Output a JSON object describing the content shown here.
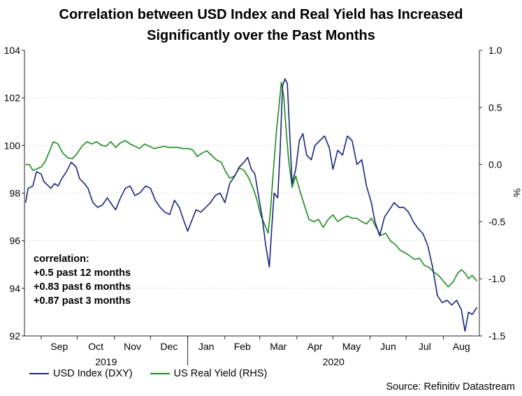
{
  "title": [
    "Correlation between USD Index and Real Yield has Increased",
    "Significantly over the Past Months"
  ],
  "annotation": [
    "correlation:",
    "+0.5 past 12 months",
    "+0.83 past 6 months",
    "+0.87 past 3 months"
  ],
  "source": "Source: Refinitiv Datastream",
  "colors": {
    "usd": "#1a237e",
    "real_yield": "#1b8a1b",
    "axis": "#222222",
    "grid": "#bdbdbd"
  },
  "chart_data": {
    "type": "line",
    "x_months": [
      "Sep",
      "Oct",
      "Nov",
      "Dec",
      "Jan",
      "Feb",
      "Mar",
      "Apr",
      "May",
      "Jun",
      "Jul",
      "Aug"
    ],
    "x_years": [
      "2019",
      "2020"
    ],
    "x_range": [
      "2019-08-18",
      "2020-08-31"
    ],
    "y_left": {
      "min": 92,
      "max": 104,
      "ticks": [
        "92",
        "94",
        "96",
        "98",
        "100",
        "102",
        "104"
      ]
    },
    "y_right": {
      "min": -1.5,
      "max": 1.0,
      "label": "%",
      "ticks": [
        "-1.5",
        "-1.0",
        "-0.5",
        "0.0",
        "0.5",
        "1.0"
      ]
    },
    "grid": "horizontal, dotted",
    "legend_position": "bottom-left",
    "series": [
      {
        "name": "USD Index (DXY)",
        "axis": "left",
        "points": [
          [
            "2019-08-19",
            97.6
          ],
          [
            "2019-08-21",
            98.2
          ],
          [
            "2019-08-25",
            98.3
          ],
          [
            "2019-08-28",
            98.9
          ],
          [
            "2019-09-01",
            98.8
          ],
          [
            "2019-09-03",
            98.5
          ],
          [
            "2019-09-05",
            98.4
          ],
          [
            "2019-09-09",
            98.2
          ],
          [
            "2019-09-12",
            98.4
          ],
          [
            "2019-09-15",
            98.3
          ],
          [
            "2019-09-18",
            98.6
          ],
          [
            "2019-09-22",
            98.9
          ],
          [
            "2019-09-26",
            99.3
          ],
          [
            "2019-09-30",
            99.1
          ],
          [
            "2019-10-03",
            98.6
          ],
          [
            "2019-10-07",
            98.4
          ],
          [
            "2019-10-10",
            98.2
          ],
          [
            "2019-10-14",
            97.6
          ],
          [
            "2019-10-18",
            97.4
          ],
          [
            "2019-10-22",
            97.5
          ],
          [
            "2019-10-26",
            97.8
          ],
          [
            "2019-10-30",
            97.5
          ],
          [
            "2019-11-02",
            97.3
          ],
          [
            "2019-11-06",
            97.8
          ],
          [
            "2019-11-10",
            98.2
          ],
          [
            "2019-11-14",
            98.3
          ],
          [
            "2019-11-18",
            97.9
          ],
          [
            "2019-11-22",
            98.0
          ],
          [
            "2019-11-27",
            98.3
          ],
          [
            "2019-12-01",
            98.2
          ],
          [
            "2019-12-05",
            97.7
          ],
          [
            "2019-12-09",
            97.4
          ],
          [
            "2019-12-13",
            97.2
          ],
          [
            "2019-12-17",
            97.1
          ],
          [
            "2019-12-21",
            97.7
          ],
          [
            "2019-12-25",
            97.4
          ],
          [
            "2019-12-29",
            96.8
          ],
          [
            "2020-01-01",
            96.4
          ],
          [
            "2020-01-04",
            96.8
          ],
          [
            "2020-01-08",
            97.3
          ],
          [
            "2020-01-12",
            97.2
          ],
          [
            "2020-01-16",
            97.4
          ],
          [
            "2020-01-20",
            97.6
          ],
          [
            "2020-01-24",
            97.9
          ],
          [
            "2020-01-28",
            98.0
          ],
          [
            "2020-02-01",
            97.6
          ],
          [
            "2020-02-05",
            98.4
          ],
          [
            "2020-02-09",
            98.7
          ],
          [
            "2020-02-13",
            99.1
          ],
          [
            "2020-02-17",
            99.3
          ],
          [
            "2020-02-20",
            99.5
          ],
          [
            "2020-02-23",
            99.0
          ],
          [
            "2020-02-26",
            98.8
          ],
          [
            "2020-02-29",
            97.9
          ],
          [
            "2020-03-03",
            97.0
          ],
          [
            "2020-03-06",
            95.8
          ],
          [
            "2020-03-09",
            94.9
          ],
          [
            "2020-03-11",
            96.5
          ],
          [
            "2020-03-13",
            98.0
          ],
          [
            "2020-03-16",
            97.8
          ],
          [
            "2020-03-18",
            99.8
          ],
          [
            "2020-03-20",
            102.5
          ],
          [
            "2020-03-22",
            102.8
          ],
          [
            "2020-03-24",
            102.6
          ],
          [
            "2020-03-26",
            100.5
          ],
          [
            "2020-03-28",
            98.4
          ],
          [
            "2020-03-31",
            99.0
          ],
          [
            "2020-04-03",
            100.2
          ],
          [
            "2020-04-06",
            100.5
          ],
          [
            "2020-04-09",
            99.6
          ],
          [
            "2020-04-13",
            99.4
          ],
          [
            "2020-04-16",
            100.0
          ],
          [
            "2020-04-20",
            100.2
          ],
          [
            "2020-04-24",
            100.4
          ],
          [
            "2020-04-28",
            99.9
          ],
          [
            "2020-05-01",
            99.0
          ],
          [
            "2020-05-05",
            99.8
          ],
          [
            "2020-05-09",
            99.6
          ],
          [
            "2020-05-13",
            100.4
          ],
          [
            "2020-05-17",
            100.2
          ],
          [
            "2020-05-21",
            99.2
          ],
          [
            "2020-05-25",
            99.4
          ],
          [
            "2020-05-29",
            98.3
          ],
          [
            "2020-06-02",
            97.6
          ],
          [
            "2020-06-05",
            96.8
          ],
          [
            "2020-06-09",
            96.2
          ],
          [
            "2020-06-13",
            97.0
          ],
          [
            "2020-06-17",
            97.3
          ],
          [
            "2020-06-21",
            97.6
          ],
          [
            "2020-06-25",
            97.4
          ],
          [
            "2020-06-29",
            97.4
          ],
          [
            "2020-07-03",
            97.2
          ],
          [
            "2020-07-07",
            96.8
          ],
          [
            "2020-07-11",
            96.5
          ],
          [
            "2020-07-15",
            96.3
          ],
          [
            "2020-07-19",
            95.8
          ],
          [
            "2020-07-23",
            94.9
          ],
          [
            "2020-07-27",
            93.7
          ],
          [
            "2020-07-31",
            93.4
          ],
          [
            "2020-08-04",
            93.5
          ],
          [
            "2020-08-08",
            93.3
          ],
          [
            "2020-08-12",
            93.5
          ],
          [
            "2020-08-16",
            93.1
          ],
          [
            "2020-08-19",
            92.2
          ],
          [
            "2020-08-22",
            93.0
          ],
          [
            "2020-08-25",
            92.9
          ],
          [
            "2020-08-29",
            93.2
          ]
        ]
      },
      {
        "name": "US Real Yield (RHS)",
        "axis": "right",
        "points": [
          [
            "2019-08-19",
            0.0
          ],
          [
            "2019-08-22",
            0.0
          ],
          [
            "2019-08-25",
            -0.05
          ],
          [
            "2019-08-28",
            -0.04
          ],
          [
            "2019-09-01",
            -0.02
          ],
          [
            "2019-09-04",
            0.02
          ],
          [
            "2019-09-08",
            0.12
          ],
          [
            "2019-09-11",
            0.2
          ],
          [
            "2019-09-15",
            0.18
          ],
          [
            "2019-09-19",
            0.1
          ],
          [
            "2019-09-23",
            0.06
          ],
          [
            "2019-09-27",
            0.05
          ],
          [
            "2019-10-01",
            0.1
          ],
          [
            "2019-10-05",
            0.16
          ],
          [
            "2019-10-09",
            0.2
          ],
          [
            "2019-10-13",
            0.18
          ],
          [
            "2019-10-17",
            0.2
          ],
          [
            "2019-10-21",
            0.17
          ],
          [
            "2019-10-25",
            0.16
          ],
          [
            "2019-10-29",
            0.2
          ],
          [
            "2019-11-02",
            0.15
          ],
          [
            "2019-11-06",
            0.19
          ],
          [
            "2019-11-10",
            0.21
          ],
          [
            "2019-11-14",
            0.18
          ],
          [
            "2019-11-18",
            0.16
          ],
          [
            "2019-11-22",
            0.14
          ],
          [
            "2019-11-26",
            0.18
          ],
          [
            "2019-11-30",
            0.16
          ],
          [
            "2019-12-04",
            0.14
          ],
          [
            "2019-12-08",
            0.15
          ],
          [
            "2019-12-12",
            0.16
          ],
          [
            "2019-12-16",
            0.15
          ],
          [
            "2019-12-20",
            0.15
          ],
          [
            "2019-12-24",
            0.15
          ],
          [
            "2019-12-28",
            0.14
          ],
          [
            "2020-01-01",
            0.14
          ],
          [
            "2020-01-05",
            0.13
          ],
          [
            "2020-01-09",
            0.07
          ],
          [
            "2020-01-13",
            0.1
          ],
          [
            "2020-01-17",
            0.12
          ],
          [
            "2020-01-21",
            0.08
          ],
          [
            "2020-01-25",
            0.04
          ],
          [
            "2020-01-29",
            0.02
          ],
          [
            "2020-02-01",
            -0.05
          ],
          [
            "2020-02-05",
            -0.12
          ],
          [
            "2020-02-09",
            -0.1
          ],
          [
            "2020-02-13",
            -0.03
          ],
          [
            "2020-02-17",
            -0.05
          ],
          [
            "2020-02-21",
            -0.12
          ],
          [
            "2020-02-25",
            -0.22
          ],
          [
            "2020-02-28",
            -0.32
          ],
          [
            "2020-03-02",
            -0.45
          ],
          [
            "2020-03-05",
            -0.52
          ],
          [
            "2020-03-08",
            -0.6
          ],
          [
            "2020-03-10",
            -0.4
          ],
          [
            "2020-03-12",
            -0.1
          ],
          [
            "2020-03-15",
            0.3
          ],
          [
            "2020-03-17",
            0.5
          ],
          [
            "2020-03-19",
            0.72
          ],
          [
            "2020-03-21",
            0.6
          ],
          [
            "2020-03-23",
            0.3
          ],
          [
            "2020-03-25",
            0.05
          ],
          [
            "2020-03-28",
            -0.2
          ],
          [
            "2020-03-31",
            -0.1
          ],
          [
            "2020-04-04",
            -0.25
          ],
          [
            "2020-04-08",
            -0.38
          ],
          [
            "2020-04-11",
            -0.48
          ],
          [
            "2020-04-15",
            -0.5
          ],
          [
            "2020-04-19",
            -0.48
          ],
          [
            "2020-04-23",
            -0.55
          ],
          [
            "2020-04-27",
            -0.48
          ],
          [
            "2020-05-01",
            -0.44
          ],
          [
            "2020-05-05",
            -0.5
          ],
          [
            "2020-05-09",
            -0.47
          ],
          [
            "2020-05-13",
            -0.45
          ],
          [
            "2020-05-17",
            -0.47
          ],
          [
            "2020-05-21",
            -0.47
          ],
          [
            "2020-05-25",
            -0.5
          ],
          [
            "2020-05-29",
            -0.52
          ],
          [
            "2020-06-02",
            -0.47
          ],
          [
            "2020-06-06",
            -0.55
          ],
          [
            "2020-06-10",
            -0.62
          ],
          [
            "2020-06-14",
            -0.6
          ],
          [
            "2020-06-18",
            -0.67
          ],
          [
            "2020-06-22",
            -0.7
          ],
          [
            "2020-06-26",
            -0.75
          ],
          [
            "2020-06-30",
            -0.77
          ],
          [
            "2020-07-04",
            -0.8
          ],
          [
            "2020-07-08",
            -0.83
          ],
          [
            "2020-07-12",
            -0.82
          ],
          [
            "2020-07-16",
            -0.88
          ],
          [
            "2020-07-20",
            -0.9
          ],
          [
            "2020-07-24",
            -0.94
          ],
          [
            "2020-07-28",
            -0.97
          ],
          [
            "2020-08-01",
            -1.02
          ],
          [
            "2020-08-05",
            -1.07
          ],
          [
            "2020-08-09",
            -1.03
          ],
          [
            "2020-08-13",
            -0.95
          ],
          [
            "2020-08-16",
            -0.92
          ],
          [
            "2020-08-19",
            -0.95
          ],
          [
            "2020-08-22",
            -1.0
          ],
          [
            "2020-08-25",
            -0.97
          ],
          [
            "2020-08-29",
            -1.02
          ]
        ]
      }
    ]
  }
}
